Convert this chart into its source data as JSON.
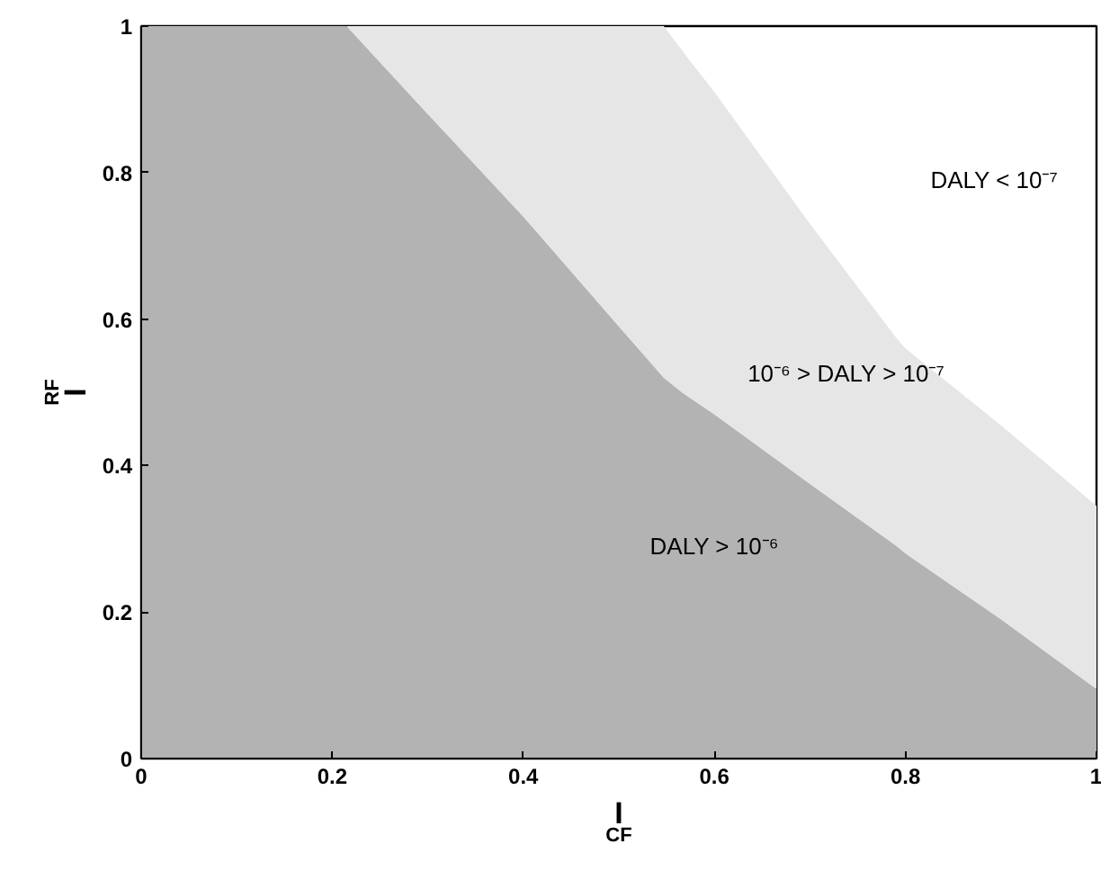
{
  "chart_data": {
    "type": "area",
    "stacked": true,
    "xlabel": "I$_{CF}$",
    "ylabel": "I$_{RF}$",
    "xlim": [
      0,
      1
    ],
    "ylim": [
      0,
      1
    ],
    "xticks": [
      0,
      0.2,
      0.4,
      0.6,
      0.8,
      1
    ],
    "yticks": [
      0,
      0.2,
      0.4,
      0.6,
      0.8,
      1
    ],
    "grid": false,
    "x": [
      0,
      0.1,
      0.215,
      0.3,
      0.4,
      0.5,
      0.547,
      0.566,
      0.6,
      0.7,
      0.79,
      0.8,
      0.9,
      1
    ],
    "series": [
      {
        "color": "#b3b3b3",
        "values": [
          1,
          1,
          1,
          0.88,
          0.74,
          0.59,
          0.52,
          0.5,
          0.47,
          0.375,
          0.291,
          0.28,
          0.19,
          0.095
        ]
      },
      {
        "color": "#e6e6e6",
        "values": [
          0,
          0,
          0,
          0.12,
          0.26,
          0.41,
          0.48,
          0.467,
          0.44,
          0.355,
          0.284,
          0.28,
          0.265,
          0.25
        ]
      }
    ],
    "annotations": [
      "DALY < 10⁻⁷",
      "10⁻⁶ > DALY > 10⁻⁷",
      "DALY > 10⁻⁶"
    ]
  }
}
